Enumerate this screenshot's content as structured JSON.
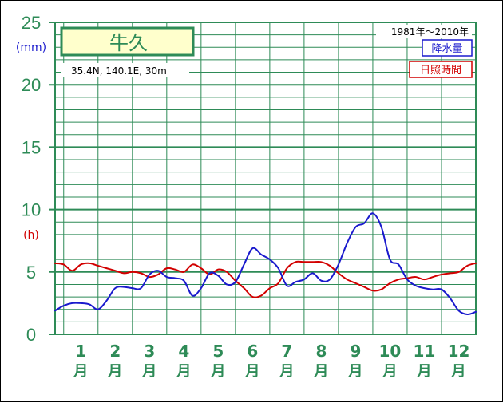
{
  "station": {
    "name": "牛久",
    "coords": "35.4N,  140.1E,  30m",
    "period": "1981年〜2010年"
  },
  "legend": {
    "precip_label": "降水量",
    "sunshine_label": "日照時間",
    "precip_color": "#1a1acd",
    "sunshine_color": "#d20000"
  },
  "colors": {
    "grid": "#2e8b57",
    "axis_text": "#2e8b57"
  },
  "chart_data": {
    "type": "line",
    "y_ticks": [
      "0",
      "5",
      "10",
      "15",
      "20",
      "25"
    ],
    "y_tick_values": [
      0,
      5,
      10,
      15,
      20,
      25
    ],
    "ylim": [
      0,
      25
    ],
    "y_unit_precip": "(mm)",
    "y_unit_sunshine": "(h)",
    "x_range": [
      0.5,
      12.75
    ],
    "months": [
      {
        "num": "1",
        "kanji": "月"
      },
      {
        "num": "2",
        "kanji": "月"
      },
      {
        "num": "3",
        "kanji": "月"
      },
      {
        "num": "4",
        "kanji": "月"
      },
      {
        "num": "5",
        "kanji": "月"
      },
      {
        "num": "6",
        "kanji": "月"
      },
      {
        "num": "7",
        "kanji": "月"
      },
      {
        "num": "8",
        "kanji": "月"
      },
      {
        "num": "9",
        "kanji": "月"
      },
      {
        "num": "10",
        "kanji": "月"
      },
      {
        "num": "11",
        "kanji": "月"
      },
      {
        "num": "12",
        "kanji": "月"
      }
    ],
    "series": [
      {
        "name": "降水量",
        "color": "#1a1acd",
        "x": [
          0.5,
          0.75,
          1.0,
          1.25,
          1.5,
          1.75,
          2.0,
          2.25,
          2.5,
          2.75,
          3.0,
          3.25,
          3.5,
          3.75,
          4.0,
          4.25,
          4.5,
          4.75,
          5.0,
          5.25,
          5.5,
          5.75,
          6.0,
          6.25,
          6.5,
          6.75,
          7.0,
          7.25,
          7.5,
          7.75,
          8.0,
          8.25,
          8.5,
          8.75,
          9.0,
          9.25,
          9.5,
          9.75,
          10.0,
          10.25,
          10.5,
          10.75,
          11.0,
          11.25,
          11.5,
          11.75,
          12.0,
          12.25,
          12.5,
          12.75
        ],
        "values": [
          1.9,
          2.3,
          2.5,
          2.5,
          2.4,
          2.0,
          2.7,
          3.7,
          3.8,
          3.7,
          3.7,
          4.8,
          5.1,
          4.6,
          4.5,
          4.3,
          3.1,
          3.7,
          4.9,
          4.7,
          4.0,
          4.2,
          5.6,
          6.9,
          6.4,
          6.0,
          5.3,
          3.9,
          4.2,
          4.4,
          4.9,
          4.3,
          4.4,
          5.6,
          7.3,
          8.6,
          8.9,
          9.7,
          8.6,
          6.0,
          5.6,
          4.4,
          3.9,
          3.7,
          3.6,
          3.6,
          2.9,
          1.9,
          1.6,
          1.8
        ]
      },
      {
        "name": "日照時間",
        "color": "#d20000",
        "x": [
          0.5,
          0.75,
          1.0,
          1.25,
          1.5,
          1.75,
          2.0,
          2.25,
          2.5,
          2.75,
          3.0,
          3.25,
          3.5,
          3.75,
          4.0,
          4.25,
          4.5,
          4.75,
          5.0,
          5.25,
          5.5,
          5.75,
          6.0,
          6.25,
          6.5,
          6.75,
          7.0,
          7.25,
          7.5,
          7.75,
          8.0,
          8.25,
          8.5,
          8.75,
          9.0,
          9.25,
          9.5,
          9.75,
          10.0,
          10.25,
          10.5,
          10.75,
          11.0,
          11.25,
          11.5,
          11.75,
          12.0,
          12.25,
          12.5,
          12.75
        ],
        "values": [
          5.7,
          5.6,
          5.1,
          5.6,
          5.7,
          5.5,
          5.3,
          5.1,
          4.9,
          5.0,
          4.9,
          4.6,
          4.8,
          5.3,
          5.2,
          5.0,
          5.6,
          5.3,
          4.8,
          5.2,
          5.0,
          4.3,
          3.7,
          3.0,
          3.1,
          3.7,
          4.1,
          5.3,
          5.8,
          5.8,
          5.8,
          5.8,
          5.5,
          4.9,
          4.4,
          4.1,
          3.8,
          3.5,
          3.6,
          4.1,
          4.4,
          4.5,
          4.6,
          4.4,
          4.6,
          4.8,
          4.9,
          5.0,
          5.5,
          5.7
        ]
      }
    ]
  }
}
